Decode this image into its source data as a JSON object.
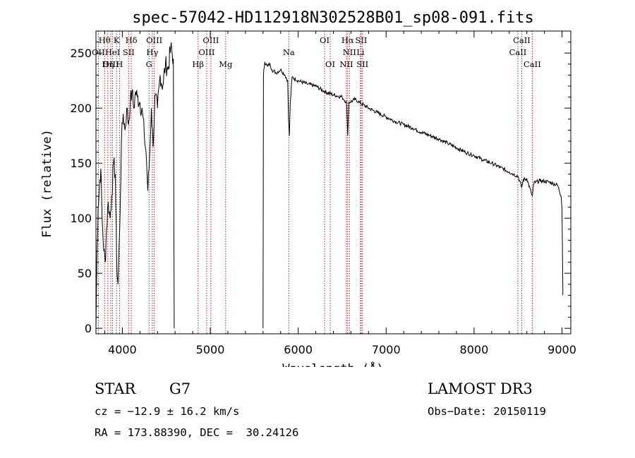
{
  "chart_data": {
    "type": "line",
    "title": "spec-57042-HD112918N302528B01_sp08-091.fits",
    "xlabel": "Wavelength (Å)",
    "ylabel": "Flux (relative)",
    "xlim": [
      3700,
      9100
    ],
    "ylim": [
      -5,
      270
    ],
    "xticks": [
      4000,
      5000,
      6000,
      7000,
      8000,
      9000
    ],
    "yticks": [
      0,
      50,
      100,
      150,
      200,
      250
    ],
    "grid": false,
    "series": [
      {
        "name": "flux",
        "segments": [
          [
            [
              3700,
              0
            ],
            [
              3710,
              60
            ],
            [
              3725,
              110
            ],
            [
              3740,
              130
            ],
            [
              3755,
              145
            ],
            [
              3770,
              100
            ],
            [
              3790,
              70
            ],
            [
              3805,
              60
            ],
            [
              3820,
              90
            ],
            [
              3840,
              115
            ],
            [
              3860,
              100
            ],
            [
              3880,
              120
            ],
            [
              3900,
              150
            ],
            [
              3920,
              140
            ],
            [
              3935,
              60
            ],
            [
              3950,
              40
            ],
            [
              3970,
              90
            ],
            [
              3990,
              170
            ],
            [
              4010,
              195
            ],
            [
              4030,
              180
            ],
            [
              4050,
              200
            ],
            [
              4070,
              185
            ],
            [
              4090,
              205
            ],
            [
              4110,
              215
            ],
            [
              4130,
              200
            ],
            [
              4150,
              215
            ],
            [
              4170,
              210
            ],
            [
              4200,
              205
            ],
            [
              4230,
              195
            ],
            [
              4250,
              175
            ],
            [
              4270,
              160
            ],
            [
              4290,
              125
            ],
            [
              4310,
              155
            ],
            [
              4330,
              200
            ],
            [
              4350,
              165
            ],
            [
              4370,
              210
            ],
            [
              4400,
              200
            ],
            [
              4430,
              230
            ],
            [
              4460,
              220
            ],
            [
              4490,
              240
            ],
            [
              4520,
              235
            ],
            [
              4550,
              255
            ],
            [
              4580,
              245
            ],
            [
              4590,
              0
            ]
          ],
          [
            [
              5600,
              0
            ],
            [
              5605,
              230
            ],
            [
              5620,
              242
            ],
            [
              5650,
              238
            ],
            [
              5680,
              240
            ],
            [
              5700,
              235
            ],
            [
              5750,
              232
            ],
            [
              5800,
              235
            ],
            [
              5850,
              230
            ],
            [
              5880,
              225
            ],
            [
              5890,
              190
            ],
            [
              5900,
              175
            ],
            [
              5910,
              205
            ],
            [
              5930,
              228
            ],
            [
              6000,
              225
            ],
            [
              6100,
              222
            ],
            [
              6200,
              220
            ],
            [
              6300,
              215
            ],
            [
              6400,
              212
            ],
            [
              6500,
              210
            ],
            [
              6550,
              205
            ],
            [
              6563,
              175
            ],
            [
              6575,
              205
            ],
            [
              6650,
              208
            ],
            [
              6700,
              205
            ],
            [
              6800,
              200
            ],
            [
              6900,
              196
            ],
            [
              7000,
              192
            ],
            [
              7100,
              188
            ],
            [
              7200,
              185
            ],
            [
              7300,
              182
            ],
            [
              7400,
              178
            ],
            [
              7500,
              175
            ],
            [
              7600,
              172
            ],
            [
              7700,
              168
            ],
            [
              7800,
              164
            ],
            [
              7900,
              160
            ],
            [
              8000,
              157
            ],
            [
              8100,
              153
            ],
            [
              8200,
              150
            ],
            [
              8300,
              146
            ],
            [
              8400,
              142
            ],
            [
              8450,
              140
            ],
            [
              8500,
              138
            ],
            [
              8542,
              128
            ],
            [
              8560,
              135
            ],
            [
              8600,
              136
            ],
            [
              8662,
              120
            ],
            [
              8680,
              132
            ],
            [
              8750,
              134
            ],
            [
              8850,
              133
            ],
            [
              8950,
              130
            ],
            [
              8990,
              120
            ],
            [
              9000,
              110
            ],
            [
              9010,
              30
            ]
          ]
        ]
      }
    ],
    "lines": [
      {
        "label": "Hθ",
        "wavelength": 3798,
        "row": 0
      },
      {
        "label": "OII",
        "wavelength": 3727,
        "row": 1
      },
      {
        "label": "OIII",
        "wavelength": 3869,
        "row": 2
      },
      {
        "label": "K",
        "wavelength": 3934,
        "row": 0
      },
      {
        "label": "HeI",
        "wavelength": 3889,
        "row": 1
      },
      {
        "label": "Hη",
        "wavelength": 3835,
        "row": 2
      },
      {
        "label": "SII",
        "wavelength": 4072,
        "row": 1
      },
      {
        "label": "H",
        "wavelength": 3968,
        "row": 2
      },
      {
        "label": "Hδ",
        "wavelength": 4102,
        "row": 0
      },
      {
        "label": "OIII",
        "wavelength": 4363,
        "row": 0
      },
      {
        "label": "Hγ",
        "wavelength": 4341,
        "row": 1
      },
      {
        "label": "G",
        "wavelength": 4304,
        "row": 2
      },
      {
        "label": "OIII",
        "wavelength": 5007,
        "row": 0
      },
      {
        "label": "OIII",
        "wavelength": 4959,
        "row": 1
      },
      {
        "label": "Hβ",
        "wavelength": 4861,
        "row": 2
      },
      {
        "label": "Mg",
        "wavelength": 5175,
        "row": 2
      },
      {
        "label": "Na",
        "wavelength": 5893,
        "row": 1
      },
      {
        "label": "OI",
        "wavelength": 6300,
        "row": 0
      },
      {
        "label": "OI",
        "wavelength": 6364,
        "row": 2
      },
      {
        "label": "Hα",
        "wavelength": 6563,
        "row": 0
      },
      {
        "label": "SII",
        "wavelength": 6716,
        "row": 0
      },
      {
        "label": "NII",
        "wavelength": 6583,
        "row": 1
      },
      {
        "label": "Li",
        "wavelength": 6708,
        "row": 1
      },
      {
        "label": "NII",
        "wavelength": 6548,
        "row": 2
      },
      {
        "label": "SII",
        "wavelength": 6731,
        "row": 2
      },
      {
        "label": "CaII",
        "wavelength": 8542,
        "row": 0
      },
      {
        "label": "CaII",
        "wavelength": 8498,
        "row": 1
      },
      {
        "label": "CaII",
        "wavelength": 8662,
        "row": 2
      }
    ],
    "line_color": "#b22222"
  },
  "info": {
    "class": "STAR",
    "subclass": "G7",
    "survey": "LAMOST DR3",
    "cz": "cz = −12.9 ± 16.2 km/s",
    "obs_date": "Obs−Date: 20150119",
    "coords": "RA = 173.88390, DEC =  30.24126"
  }
}
